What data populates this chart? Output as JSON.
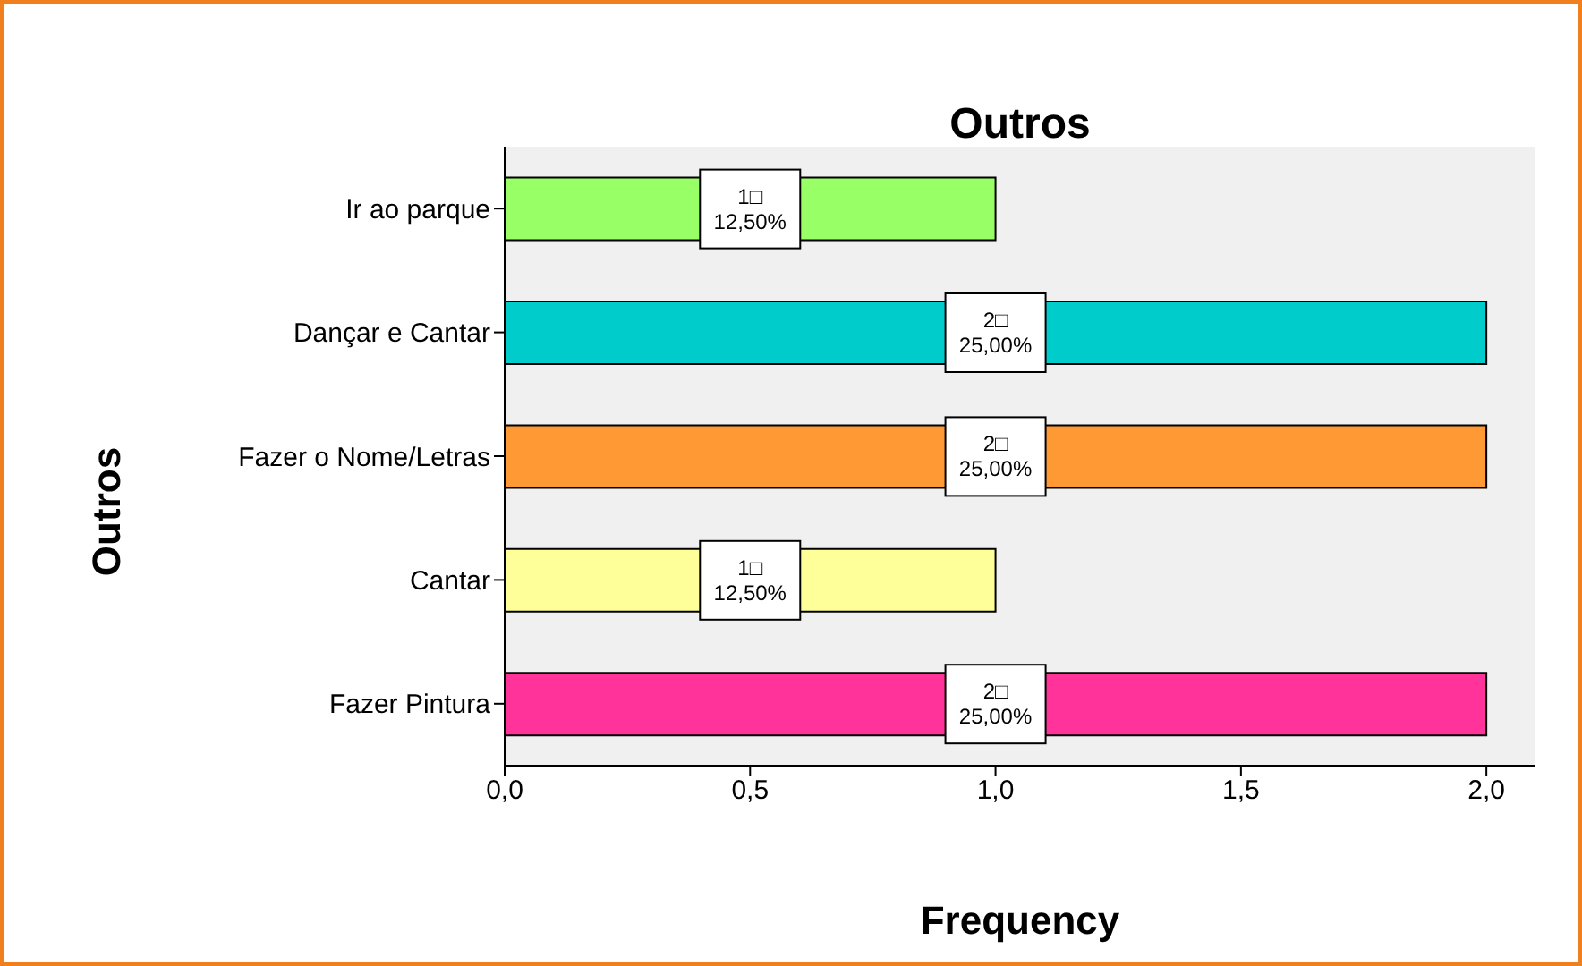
{
  "chart_data": {
    "type": "bar",
    "orientation": "horizontal",
    "title": "Outros",
    "xlabel": "Frequency",
    "ylabel": "Outros",
    "categories": [
      "Ir ao parque",
      "Dançar e Cantar",
      "Fazer o Nome/Letras",
      "Cantar",
      "Fazer Pintura"
    ],
    "values": [
      1,
      2,
      2,
      1,
      2
    ],
    "colors": [
      "#99ff66",
      "#00cccc",
      "#ff9933",
      "#ffff99",
      "#ff3399"
    ],
    "value_labels": [
      "1□\n12,50%",
      "2□\n25,00%",
      "2□\n25,00%",
      "1□\n12,50%",
      "2□\n25,00%"
    ],
    "xlim": [
      0,
      2.1
    ],
    "xticks": [
      {
        "value": 0,
        "label": "0,0"
      },
      {
        "value": 0.5,
        "label": "0,5"
      },
      {
        "value": 1,
        "label": "1,0"
      },
      {
        "value": 1.5,
        "label": "1,5"
      },
      {
        "value": 2,
        "label": "2,0"
      }
    ]
  }
}
